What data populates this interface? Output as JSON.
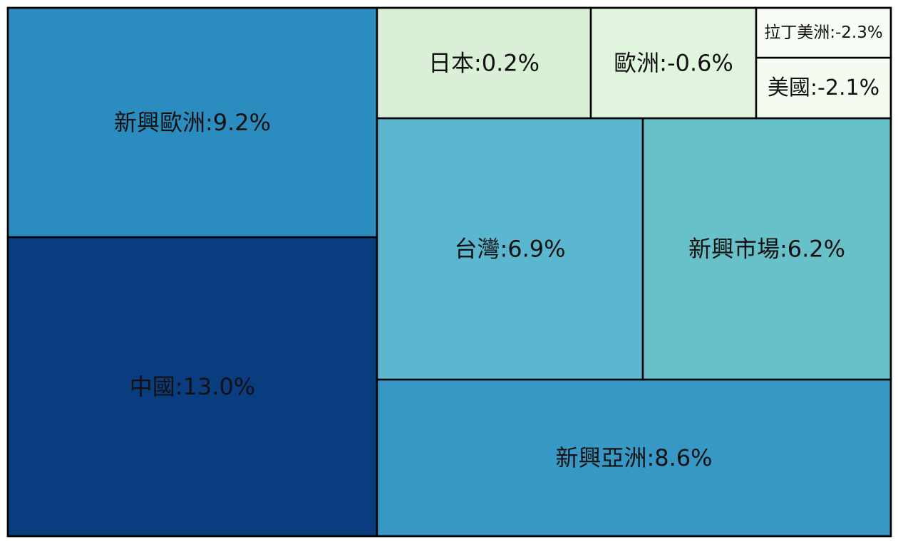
{
  "chart_data": {
    "type": "treemap",
    "title": "",
    "items": [
      {
        "label": "中國:13.0%",
        "name": "中國",
        "value": 13.0,
        "color": "#0a3d80"
      },
      {
        "label": "新興歐洲:9.2%",
        "name": "新興歐洲",
        "value": 9.2,
        "color": "#2b8cbf"
      },
      {
        "label": "新興亞洲:8.6%",
        "name": "新興亞洲",
        "value": 8.6,
        "color": "#3798c6"
      },
      {
        "label": "台灣:6.9%",
        "name": "台灣",
        "value": 6.9,
        "color": "#5bb7d0"
      },
      {
        "label": "新興市場:6.2%",
        "name": "新興市場",
        "value": 6.2,
        "color": "#68c0c9"
      },
      {
        "label": "日本:0.2%",
        "name": "日本",
        "value": 0.2,
        "color": "#daf0d6"
      },
      {
        "label": "歐洲:-0.6%",
        "name": "歐洲",
        "value": -0.6,
        "color": "#e1f4de"
      },
      {
        "label": "美國:-2.1%",
        "name": "美國",
        "value": -2.1,
        "color": "#f4fbf0"
      },
      {
        "label": "拉丁美洲:-2.3%",
        "name": "拉丁美洲",
        "value": -2.3,
        "color": "#f7fcf4"
      }
    ]
  }
}
